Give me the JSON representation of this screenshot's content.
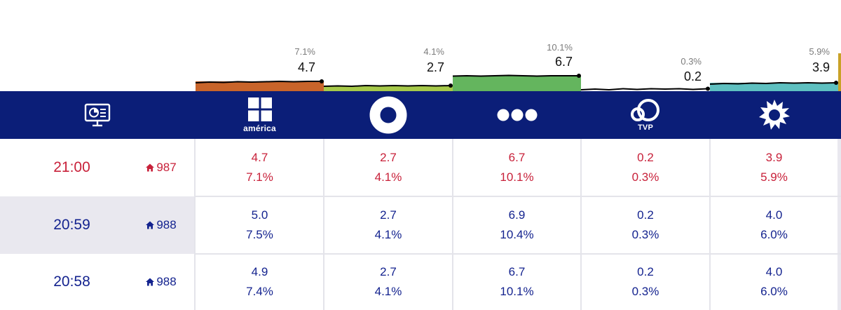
{
  "colors": {
    "header_bg": "#0b1e78",
    "current_row": "#c8213a",
    "past_row": "#14238f"
  },
  "header": {
    "monitor_icon": "monitor-chart-icon",
    "channels": [
      {
        "name": "america-logo",
        "label": "américa"
      },
      {
        "name": "ring-logo",
        "label": ""
      },
      {
        "name": "three-dots-logo",
        "label": ""
      },
      {
        "name": "tvp-logo",
        "label": "TVP"
      },
      {
        "name": "sun-logo",
        "label": ""
      }
    ]
  },
  "sparklines": [
    {
      "share": "7.1%",
      "rating": "4.7",
      "color": "#c8642a"
    },
    {
      "share": "4.1%",
      "rating": "2.7",
      "color": "#a6c94a"
    },
    {
      "share": "10.1%",
      "rating": "6.7",
      "color": "#64b55e"
    },
    {
      "share": "0.3%",
      "rating": "0.2",
      "color": "#8a8a8a"
    },
    {
      "share": "5.9%",
      "rating": "3.9",
      "color": "#5ec0c0"
    }
  ],
  "rows": [
    {
      "time": "21:00",
      "rank": "987",
      "cells": [
        {
          "rating": "4.7",
          "share": "7.1%"
        },
        {
          "rating": "2.7",
          "share": "4.1%"
        },
        {
          "rating": "6.7",
          "share": "10.1%"
        },
        {
          "rating": "0.2",
          "share": "0.3%"
        },
        {
          "rating": "3.9",
          "share": "5.9%"
        }
      ]
    },
    {
      "time": "20:59",
      "rank": "988",
      "cells": [
        {
          "rating": "5.0",
          "share": "7.5%"
        },
        {
          "rating": "2.7",
          "share": "4.1%"
        },
        {
          "rating": "6.9",
          "share": "10.4%"
        },
        {
          "rating": "0.2",
          "share": "0.3%"
        },
        {
          "rating": "4.0",
          "share": "6.0%"
        }
      ]
    },
    {
      "time": "20:58",
      "rank": "988",
      "cells": [
        {
          "rating": "4.9",
          "share": "7.4%"
        },
        {
          "rating": "2.7",
          "share": "4.1%"
        },
        {
          "rating": "6.7",
          "share": "10.1%"
        },
        {
          "rating": "0.2",
          "share": "0.3%"
        },
        {
          "rating": "4.0",
          "share": "6.0%"
        }
      ]
    }
  ]
}
